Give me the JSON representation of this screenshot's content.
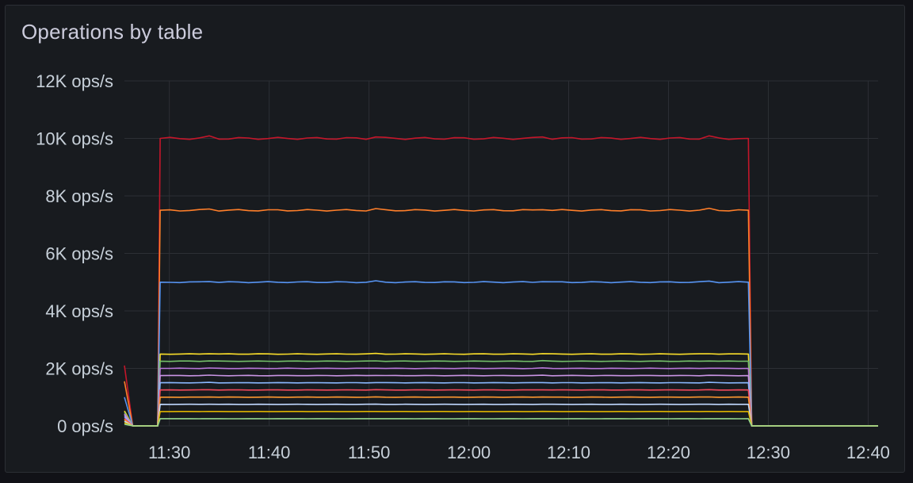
{
  "panel": {
    "title": "Operations by table"
  },
  "chart_data": {
    "type": "line",
    "title": "Operations by table",
    "xlabel": "",
    "ylabel": "",
    "x_ticks": [
      "11:30",
      "11:40",
      "11:50",
      "12:00",
      "12:10",
      "12:20",
      "12:30",
      "12:40"
    ],
    "y_ticks": [
      "0 ops/s",
      "2K ops/s",
      "4K ops/s",
      "6K ops/s",
      "8K ops/s",
      "10K ops/s",
      "12K ops/s"
    ],
    "ylim": [
      0,
      12000
    ],
    "xlim": [
      "11:25:30",
      "12:41"
    ],
    "grid": true,
    "legend": "none",
    "x": [
      "11:25:30",
      "11:26:20",
      "11:28:50",
      "11:29:05",
      "12:28",
      "12:28:20",
      "12:41"
    ],
    "series": [
      {
        "color": "#c4162a",
        "values": [
          2100,
          0,
          0,
          10000,
          10000,
          0,
          0
        ]
      },
      {
        "color": "#ff7f2a",
        "values": [
          1550,
          0,
          0,
          7500,
          7500,
          0,
          0
        ]
      },
      {
        "color": "#5794f2",
        "values": [
          1000,
          0,
          0,
          5000,
          5000,
          0,
          0
        ]
      },
      {
        "color": "#fade2a",
        "values": [
          520,
          0,
          0,
          2500,
          2500,
          0,
          0
        ]
      },
      {
        "color": "#73bf69",
        "values": [
          470,
          0,
          0,
          2250,
          2250,
          0,
          0
        ]
      },
      {
        "color": "#b877d9",
        "values": [
          420,
          0,
          0,
          2000,
          2000,
          0,
          0
        ]
      },
      {
        "color": "#ca95e5",
        "values": [
          380,
          0,
          0,
          1750,
          1750,
          0,
          0
        ]
      },
      {
        "color": "#8ab8ff",
        "values": [
          320,
          0,
          0,
          1500,
          1500,
          0,
          0
        ]
      },
      {
        "color": "#f2495c",
        "values": [
          260,
          0,
          0,
          1250,
          1250,
          0,
          0
        ]
      },
      {
        "color": "#ff9830",
        "values": [
          210,
          0,
          0,
          1000,
          1000,
          0,
          0
        ]
      },
      {
        "color": "#c0d8ff",
        "values": [
          160,
          0,
          0,
          750,
          750,
          0,
          0
        ]
      },
      {
        "color": "#e0b400",
        "values": [
          110,
          0,
          0,
          500,
          500,
          0,
          0
        ]
      },
      {
        "color": "#96d98d",
        "values": [
          60,
          0,
          0,
          250,
          250,
          0,
          0
        ]
      }
    ]
  }
}
